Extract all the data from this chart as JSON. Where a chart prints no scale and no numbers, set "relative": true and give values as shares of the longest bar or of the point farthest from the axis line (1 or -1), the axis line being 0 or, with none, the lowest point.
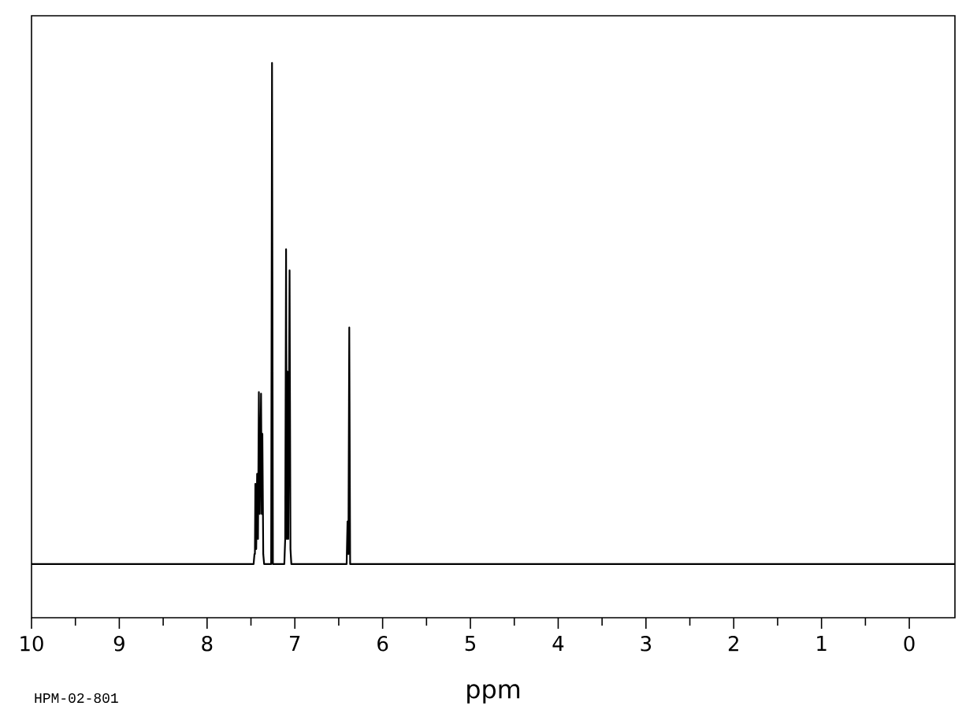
{
  "chart_data": {
    "type": "line",
    "relative": true,
    "xlabel": "ppm",
    "color": "#000000",
    "tick_labels": "x",
    "xlim": [
      10,
      -0.52
    ],
    "xticks": [
      10,
      9,
      8,
      7,
      6,
      5,
      4,
      3,
      2,
      1,
      0
    ],
    "x": [
      10,
      7.47,
      7.46,
      7.455,
      7.45,
      7.44,
      7.43,
      7.42,
      7.41,
      7.4,
      7.385,
      7.377,
      7.37,
      7.36,
      7.35,
      7.27,
      7.26,
      7.25,
      7.12,
      7.11,
      7.1,
      7.092,
      7.085,
      7.075,
      7.06,
      7.05,
      7.04,
      6.41,
      6.4,
      6.39,
      6.38,
      6.37,
      -0.52
    ],
    "values": [
      0,
      0,
      0.02,
      0.02,
      0.16,
      0.03,
      0.18,
      0.05,
      0.343,
      0.1,
      0.34,
      0.1,
      0.26,
      0.02,
      0,
      0,
      1,
      0,
      0,
      0.05,
      0.628,
      0.05,
      0.384,
      0.05,
      0.586,
      0.03,
      0,
      0,
      0.085,
      0.02,
      0.472,
      0,
      0
    ],
    "annotations": [
      "HPM-02-801"
    ]
  }
}
